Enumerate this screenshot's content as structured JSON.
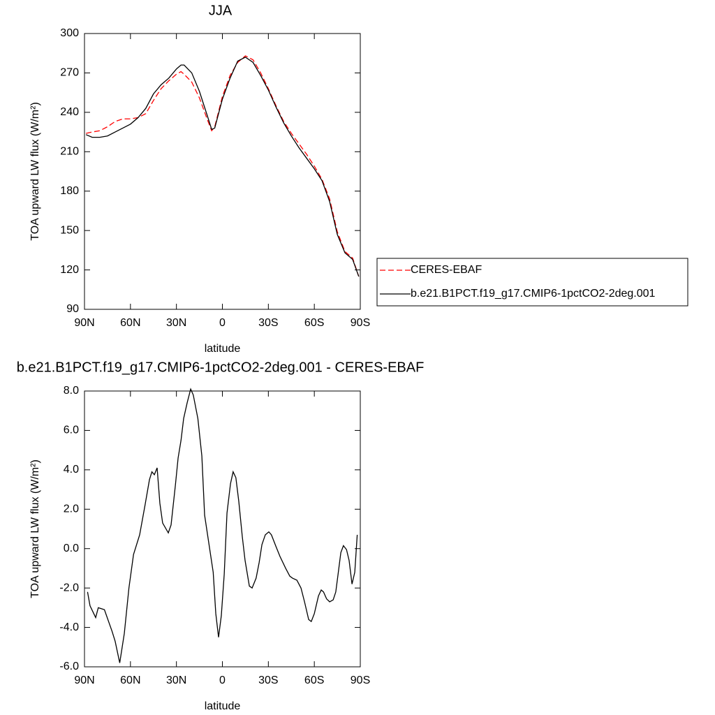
{
  "chart_data": [
    {
      "type": "line",
      "title": "JJA",
      "xlabel": "latitude",
      "ylabel": "TOA upward LW flux (W/m²)",
      "x": [
        89,
        85,
        80,
        75,
        70,
        65,
        60,
        55,
        50,
        45,
        40,
        35,
        30,
        27,
        25,
        20,
        15,
        10,
        7,
        5,
        0,
        -5,
        -10,
        -15,
        -20,
        -25,
        -30,
        -35,
        -40,
        -45,
        -50,
        -55,
        -60,
        -65,
        -70,
        -75,
        -80,
        -85,
        -89
      ],
      "series": [
        {
          "name": "CERES-EBAF",
          "color": "#ff0000",
          "dash": true,
          "values": [
            224,
            225,
            226,
            229,
            233,
            235,
            235,
            236,
            239,
            249,
            258,
            264,
            269,
            271,
            269,
            263,
            251,
            235,
            226,
            229,
            252,
            268,
            278,
            283,
            280,
            270,
            258,
            245,
            233,
            224,
            216,
            208,
            199,
            189,
            174,
            149,
            134,
            129,
            115
          ]
        },
        {
          "name": "b.e21.B1PCT.f19_g17.CMIP6-1pctCO2-2deg.001",
          "color": "#000000",
          "dash": false,
          "values": [
            223,
            221,
            221,
            222,
            225,
            228,
            231,
            236,
            243,
            254,
            261,
            266,
            273,
            276,
            276,
            270,
            256,
            238,
            227,
            228,
            250,
            266,
            279,
            282,
            278,
            268,
            257,
            244,
            232,
            222,
            213,
            205,
            197,
            188,
            172,
            147,
            133,
            128,
            115
          ]
        }
      ],
      "xlim": [
        90,
        -90
      ],
      "xticks": [
        {
          "value": 90,
          "label": "90N"
        },
        {
          "value": 60,
          "label": "60N"
        },
        {
          "value": 30,
          "label": "30N"
        },
        0,
        {
          "value": -30,
          "label": "30S"
        },
        {
          "value": -60,
          "label": "60S"
        },
        {
          "value": -90,
          "label": "90S"
        }
      ],
      "ylim": [
        90,
        300
      ],
      "yticks": [
        90,
        120,
        150,
        180,
        210,
        240,
        270,
        300
      ],
      "legend": "right"
    },
    {
      "type": "line",
      "title": "b.e21.B1PCT.f19_g17.CMIP6-1pctCO2-2deg.001 - CERES-EBAF",
      "xlabel": "latitude",
      "ylabel": "TOA upward LW flux (W/m²)",
      "x": [
        88,
        86.4,
        82.7,
        81,
        77,
        72,
        70,
        67,
        64,
        61,
        58,
        54,
        50.5,
        47.6,
        46,
        44.4,
        42.6,
        40.8,
        39,
        35.3,
        33.5,
        30.7,
        28.9,
        27,
        25.3,
        23,
        20.7,
        19,
        16,
        13.4,
        11.6,
        8.9,
        6,
        4.3,
        2.5,
        0.7,
        -1.2,
        -3,
        -5.3,
        -7,
        -8.8,
        -10.7,
        -13,
        -14.8,
        -17.6,
        -19.4,
        -22,
        -24,
        -25.8,
        -28,
        -30.3,
        -32,
        -35,
        -37.6,
        -41.3,
        -44,
        -45.8,
        -48.6,
        -51.3,
        -53.6,
        -56.3,
        -58,
        -60,
        -62.7,
        -64.5,
        -66,
        -68,
        -70,
        -72.3,
        -74,
        -75.5,
        -77.3,
        -79,
        -81,
        -82.7,
        -84.6,
        -86.4,
        -88
      ],
      "values": [
        -2.2,
        -2.9,
        -3.5,
        -3.0,
        -3.1,
        -4.2,
        -4.7,
        -5.8,
        -4.3,
        -2.0,
        -0.3,
        0.7,
        2.2,
        3.5,
        3.9,
        3.75,
        4.1,
        2.3,
        1.3,
        0.8,
        1.2,
        3.2,
        4.6,
        5.5,
        6.6,
        7.4,
        8.1,
        7.8,
        6.6,
        4.7,
        1.7,
        0.3,
        -1.2,
        -3.3,
        -4.5,
        -3.4,
        -1.3,
        1.8,
        3.3,
        3.9,
        3.6,
        2.4,
        0.6,
        -0.6,
        -1.9,
        -2.0,
        -1.5,
        -0.7,
        0.2,
        0.7,
        0.85,
        0.7,
        0.1,
        -0.4,
        -1.0,
        -1.4,
        -1.5,
        -1.6,
        -2.0,
        -2.7,
        -3.6,
        -3.7,
        -3.3,
        -2.4,
        -2.1,
        -2.2,
        -2.55,
        -2.7,
        -2.6,
        -2.2,
        -1.3,
        -0.2,
        0.15,
        -0.05,
        -0.6,
        -1.8,
        -1.2,
        0.7
      ],
      "color": "#000000",
      "xlim": [
        90,
        -90
      ],
      "xticks": [
        {
          "value": 90,
          "label": "90N"
        },
        {
          "value": 60,
          "label": "60N"
        },
        {
          "value": 30,
          "label": "30N"
        },
        0,
        {
          "value": -30,
          "label": "30S"
        },
        {
          "value": -60,
          "label": "60S"
        },
        {
          "value": -90,
          "label": "90S"
        }
      ],
      "ylim": [
        -6,
        8
      ],
      "yticks": [
        {
          "value": -6,
          "label": "-6.0"
        },
        {
          "value": -4,
          "label": "-4.0"
        },
        {
          "value": -2,
          "label": "-2.0"
        },
        {
          "value": 0,
          "label": "0.0"
        },
        {
          "value": 2,
          "label": "2.0"
        },
        {
          "value": 4,
          "label": "4.0"
        },
        {
          "value": 6,
          "label": "6.0"
        },
        {
          "value": 8,
          "label": "8.0"
        }
      ]
    }
  ]
}
